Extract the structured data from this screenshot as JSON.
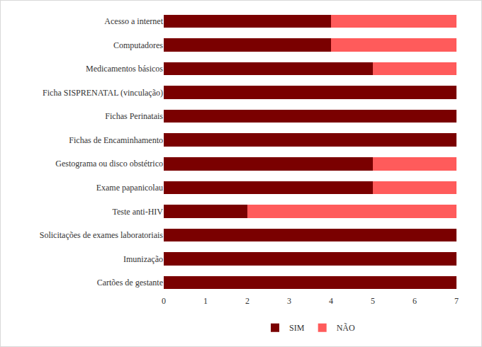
{
  "chart_data": {
    "type": "bar",
    "orientation": "horizontal",
    "stacked": true,
    "categories": [
      "Acesso a internet",
      "Computadores",
      "Medicamentos básicos",
      "Ficha SISPRENATAL (vinculação)",
      "Fichas Perinatais",
      "Fichas de Encaminhamento",
      "Gestograma ou disco obstétrico",
      "Exame papanicolau",
      "Teste anti-HIV",
      "Solicitações de exames laboratoriais",
      "Imunização",
      "Cartões de gestante"
    ],
    "series": [
      {
        "name": "SIM",
        "color": "#7a0000",
        "values": [
          4,
          4,
          5,
          7,
          7,
          7,
          5,
          5,
          2,
          7,
          7,
          7
        ]
      },
      {
        "name": "NÃO",
        "color": "#ff5b5b",
        "values": [
          3,
          3,
          2,
          0,
          0,
          0,
          2,
          2,
          5,
          0,
          0,
          0
        ]
      }
    ],
    "xlim": [
      0,
      7
    ],
    "xticks": [
      0,
      1,
      2,
      3,
      4,
      5,
      6,
      7
    ],
    "grid": false,
    "legend": "bottom"
  }
}
